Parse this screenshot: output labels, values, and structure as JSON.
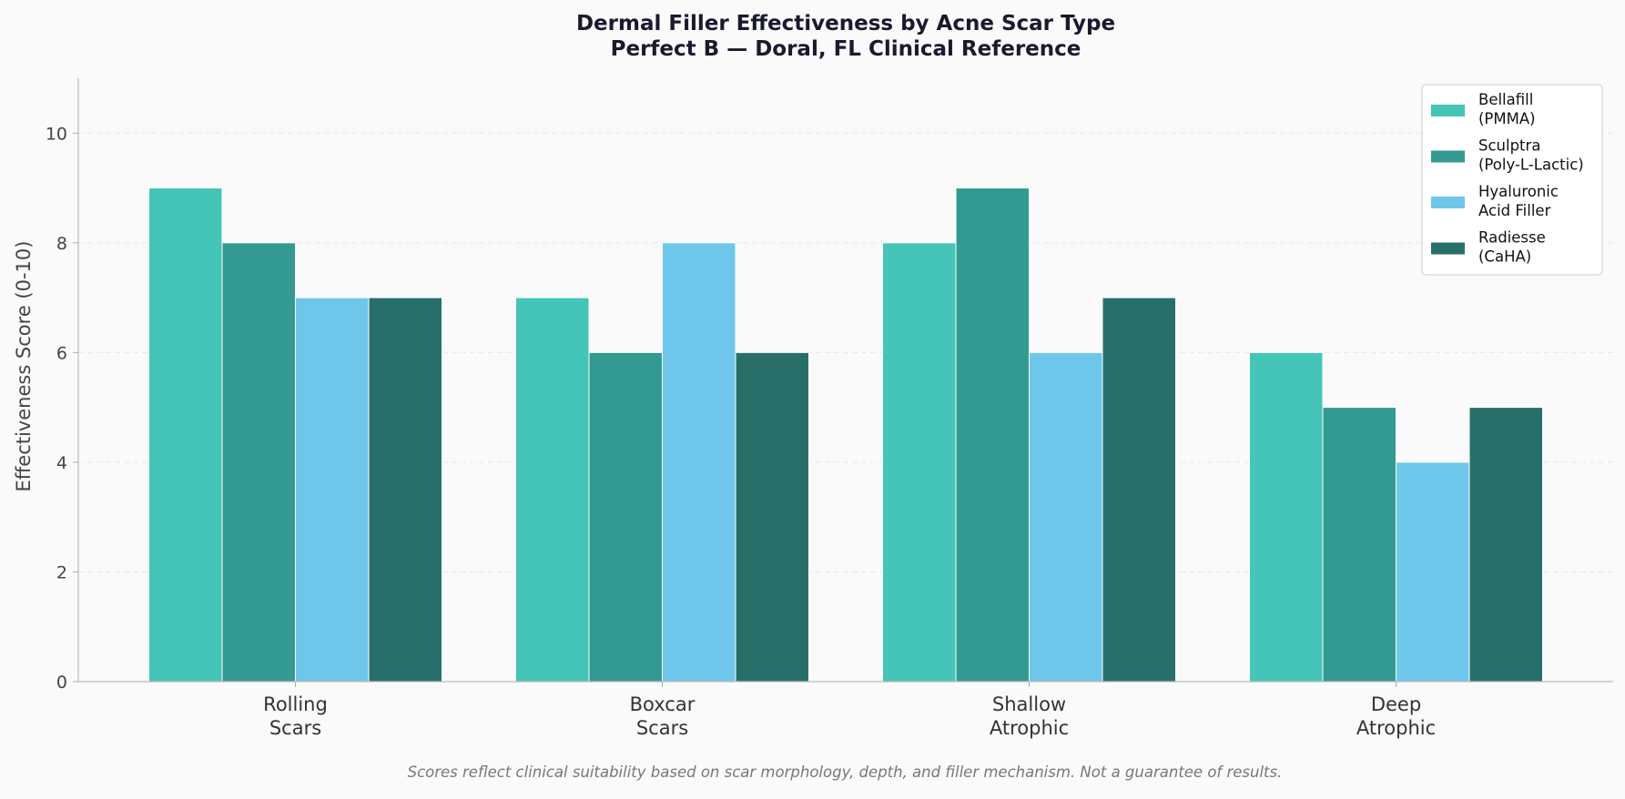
{
  "chart_data": {
    "type": "bar",
    "title": [
      "Dermal Filler Effectiveness by Acne Scar Type",
      "Perfect B — Doral, FL Clinical Reference"
    ],
    "xlabel": "",
    "ylabel": "Effectiveness Score (0-10)",
    "categories": [
      [
        "Rolling",
        "Scars"
      ],
      [
        "Boxcar",
        "Scars"
      ],
      [
        "Shallow",
        "Atrophic"
      ],
      [
        "Deep",
        "Atrophic"
      ]
    ],
    "series": [
      {
        "name": [
          "Bellafill",
          "(PMMA)"
        ],
        "color": "#45c4b8",
        "values": [
          9,
          7,
          8,
          6
        ]
      },
      {
        "name": [
          "Sculptra",
          "(Poly-L-Lactic)"
        ],
        "color": "#339a91",
        "values": [
          8,
          6,
          9,
          5
        ]
      },
      {
        "name": [
          "Hyaluronic",
          "Acid Filler"
        ],
        "color": "#6ec7eb",
        "values": [
          7,
          8,
          6,
          4
        ]
      },
      {
        "name": [
          "Radiesse",
          "(CaHA)"
        ],
        "color": "#286f6a",
        "values": [
          7,
          6,
          7,
          5
        ]
      }
    ],
    "ylim": [
      0,
      11
    ],
    "yticks": [
      0,
      2,
      4,
      6,
      8,
      10
    ],
    "grid": true,
    "legend_position": "top-right",
    "footnote": "Scores reflect clinical suitability based on scar morphology, depth, and filler mechanism. Not a guarantee of results."
  }
}
